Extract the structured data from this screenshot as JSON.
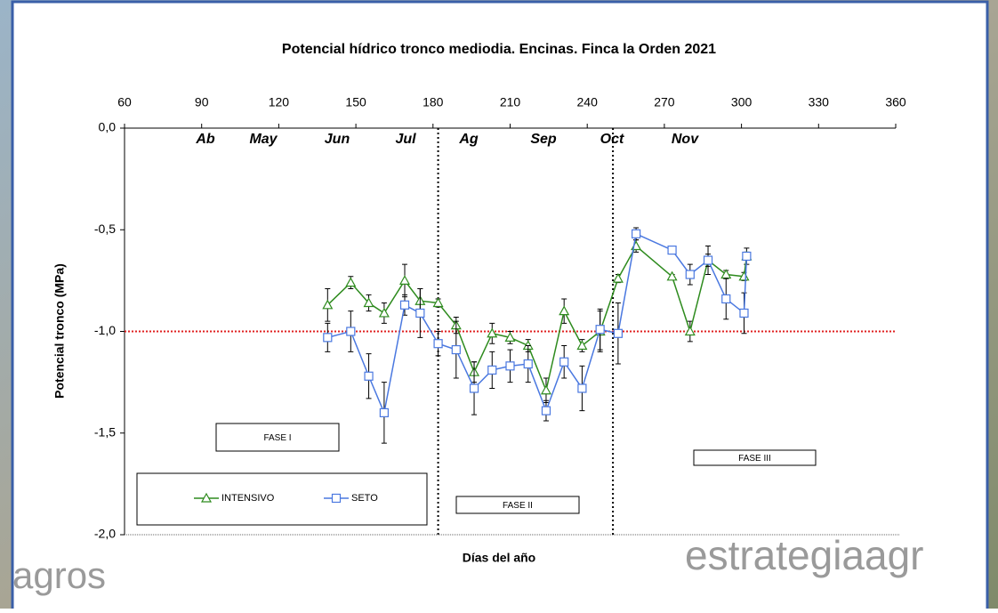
{
  "chart_data": {
    "type": "line",
    "title": "Potencial hídrico tronco mediodia. Encinas. Finca la Orden 2021",
    "x_label": "Días del año",
    "y_label": "Potencial tronco (MPa)",
    "xlim": [
      60,
      360
    ],
    "xticks": [
      60,
      90,
      120,
      150,
      180,
      210,
      240,
      270,
      300,
      330,
      360
    ],
    "ylim": [
      -2.0,
      0.0
    ],
    "yticks": [
      {
        "value": 0,
        "label": "0,0"
      },
      {
        "value": -0.5,
        "label": "-0,5"
      },
      {
        "value": -1.0,
        "label": "-1,0"
      },
      {
        "value": -1.5,
        "label": "-1,5"
      },
      {
        "value": -2.0,
        "label": "-2,0"
      }
    ],
    "x": [
      139,
      148,
      155,
      161,
      169,
      175,
      182,
      189,
      196,
      203,
      210,
      217,
      224,
      231,
      238,
      245,
      252,
      259,
      273,
      280,
      287,
      294,
      301,
      302
    ],
    "series": [
      {
        "name": "INTENSIVO",
        "color": "#2e8b1e",
        "marker": "triangle",
        "values": [
          -0.87,
          -0.76,
          -0.86,
          -0.91,
          -0.75,
          -0.85,
          -0.86,
          -0.97,
          -1.2,
          -1.01,
          -1.03,
          -1.07,
          -1.29,
          -0.9,
          -1.07,
          -1.0,
          -0.74,
          -0.58,
          -0.73,
          -1.0,
          -0.65,
          -0.72,
          -0.73,
          -0.63
        ],
        "errors": [
          0.08,
          0.03,
          0.04,
          0.05,
          0.08,
          0.06,
          0.02,
          0.04,
          0.05,
          0.05,
          0.03,
          0.03,
          0.06,
          0.06,
          0.03,
          0.1,
          0.02,
          0.03,
          0.01,
          0.05,
          0.07,
          0.02,
          0.02,
          0.04
        ]
      },
      {
        "name": "SETO",
        "color": "#4a78e0",
        "marker": "square",
        "values": [
          -1.03,
          -1.0,
          -1.22,
          -1.4,
          -0.87,
          -0.91,
          -1.06,
          -1.09,
          -1.28,
          -1.19,
          -1.17,
          -1.16,
          -1.39,
          -1.15,
          -1.28,
          -0.99,
          -1.01,
          -0.52,
          -0.6,
          -0.72,
          -0.65,
          -0.84,
          -0.91,
          -0.63
        ],
        "errors": [
          0.07,
          0.1,
          0.11,
          0.15,
          0.05,
          0.12,
          0.06,
          0.14,
          0.13,
          0.09,
          0.08,
          0.09,
          0.05,
          0.08,
          0.11,
          0.1,
          0.15,
          0.03,
          0.01,
          0.05,
          0.03,
          0.1,
          0.1,
          0.02
        ]
      }
    ],
    "reference_line": -1.0,
    "phase_lines": [
      182,
      250
    ],
    "months": [
      "Ab",
      "May",
      "Jun",
      "Jul",
      "Ag",
      "Sep",
      "Oct",
      "Nov"
    ],
    "phases": [
      "FASE I",
      "FASE II",
      "FASE III"
    ],
    "watermarks": [
      "agros",
      "estrategiaagr"
    ],
    "legend": "lower-left"
  }
}
